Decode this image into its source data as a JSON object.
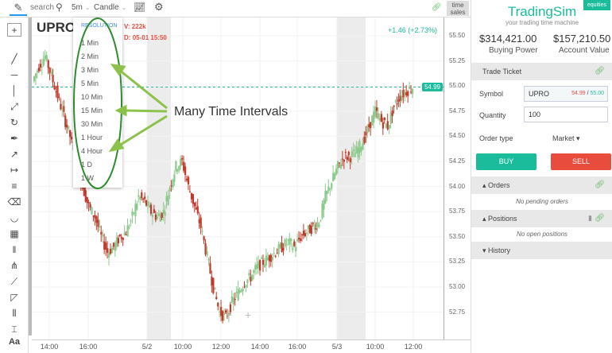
{
  "toolbar": {
    "search": "search",
    "interval": "5m",
    "chart_type": "Candle",
    "time_sales": "time sales"
  },
  "chart": {
    "symbol": "UPRO",
    "volume_label": "V:",
    "volume": "222k",
    "date_label": "D:",
    "date": "05-01 15:50",
    "change": "+1.46 (+2.73%)",
    "last_price": "54.99",
    "price_ticks": [
      "55.50",
      "55.25",
      "55.00",
      "54.75",
      "54.50",
      "54.25",
      "54.00",
      "53.75",
      "53.50",
      "53.25",
      "53.00",
      "52.75"
    ],
    "time_ticks": [
      "14:00",
      "16:00",
      "5/2",
      "10:00",
      "12:00",
      "14:00",
      "16:00",
      "5/3",
      "10:00",
      "12:00"
    ],
    "price_path": [
      55.05,
      55.2,
      55.3,
      55.1,
      54.9,
      54.7,
      54.5,
      54.2,
      54.0,
      53.8,
      53.7,
      53.5,
      53.35,
      53.4,
      53.5,
      53.55,
      53.7,
      53.9,
      53.85,
      53.75,
      53.7,
      53.75,
      54.0,
      54.2,
      54.25,
      54.0,
      53.8,
      53.6,
      53.3,
      53.0,
      52.75,
      52.7,
      52.85,
      52.95,
      53.05,
      53.1,
      53.2,
      53.25,
      53.3,
      53.35,
      53.4,
      53.45,
      53.4,
      53.5,
      53.55,
      53.6,
      53.65,
      53.9,
      54.05,
      54.2,
      54.3,
      54.3,
      54.35,
      54.45,
      54.6,
      54.75,
      54.65,
      54.6,
      54.8,
      54.9,
      54.95,
      54.99
    ],
    "colors": {
      "up": "#8cc98c",
      "down": "#c0392b",
      "accent": "#1abc9c"
    }
  },
  "resolution": {
    "header": "RESOLUTION",
    "options": [
      "1 Min",
      "2 Min",
      "3 Min",
      "5 Min",
      "10 Min",
      "15 Min",
      "30 Min",
      "1 Hour",
      "4 Hour",
      "1 D",
      "1 W"
    ]
  },
  "annotation": "Many Time Intervals",
  "panel": {
    "brand": "TradingSim",
    "badge": "equities",
    "tagline": "your trading time machine",
    "buying_power": "$314,421.00",
    "buying_power_label": "Buying Power",
    "account_value": "$157,210.50",
    "account_value_label": "Account Value",
    "trade_ticket": "Trade Ticket",
    "symbol_label": "Symbol",
    "symbol": "UPRO",
    "bid": "54.99",
    "ask": "55.00",
    "quantity_label": "Quantity",
    "quantity": "100",
    "order_type_label": "Order type",
    "order_type": "Market",
    "buy": "BUY",
    "sell": "SELL",
    "orders": "Orders",
    "no_orders": "No pending orders",
    "positions": "Positions",
    "no_positions": "No open positions",
    "history": "History"
  }
}
